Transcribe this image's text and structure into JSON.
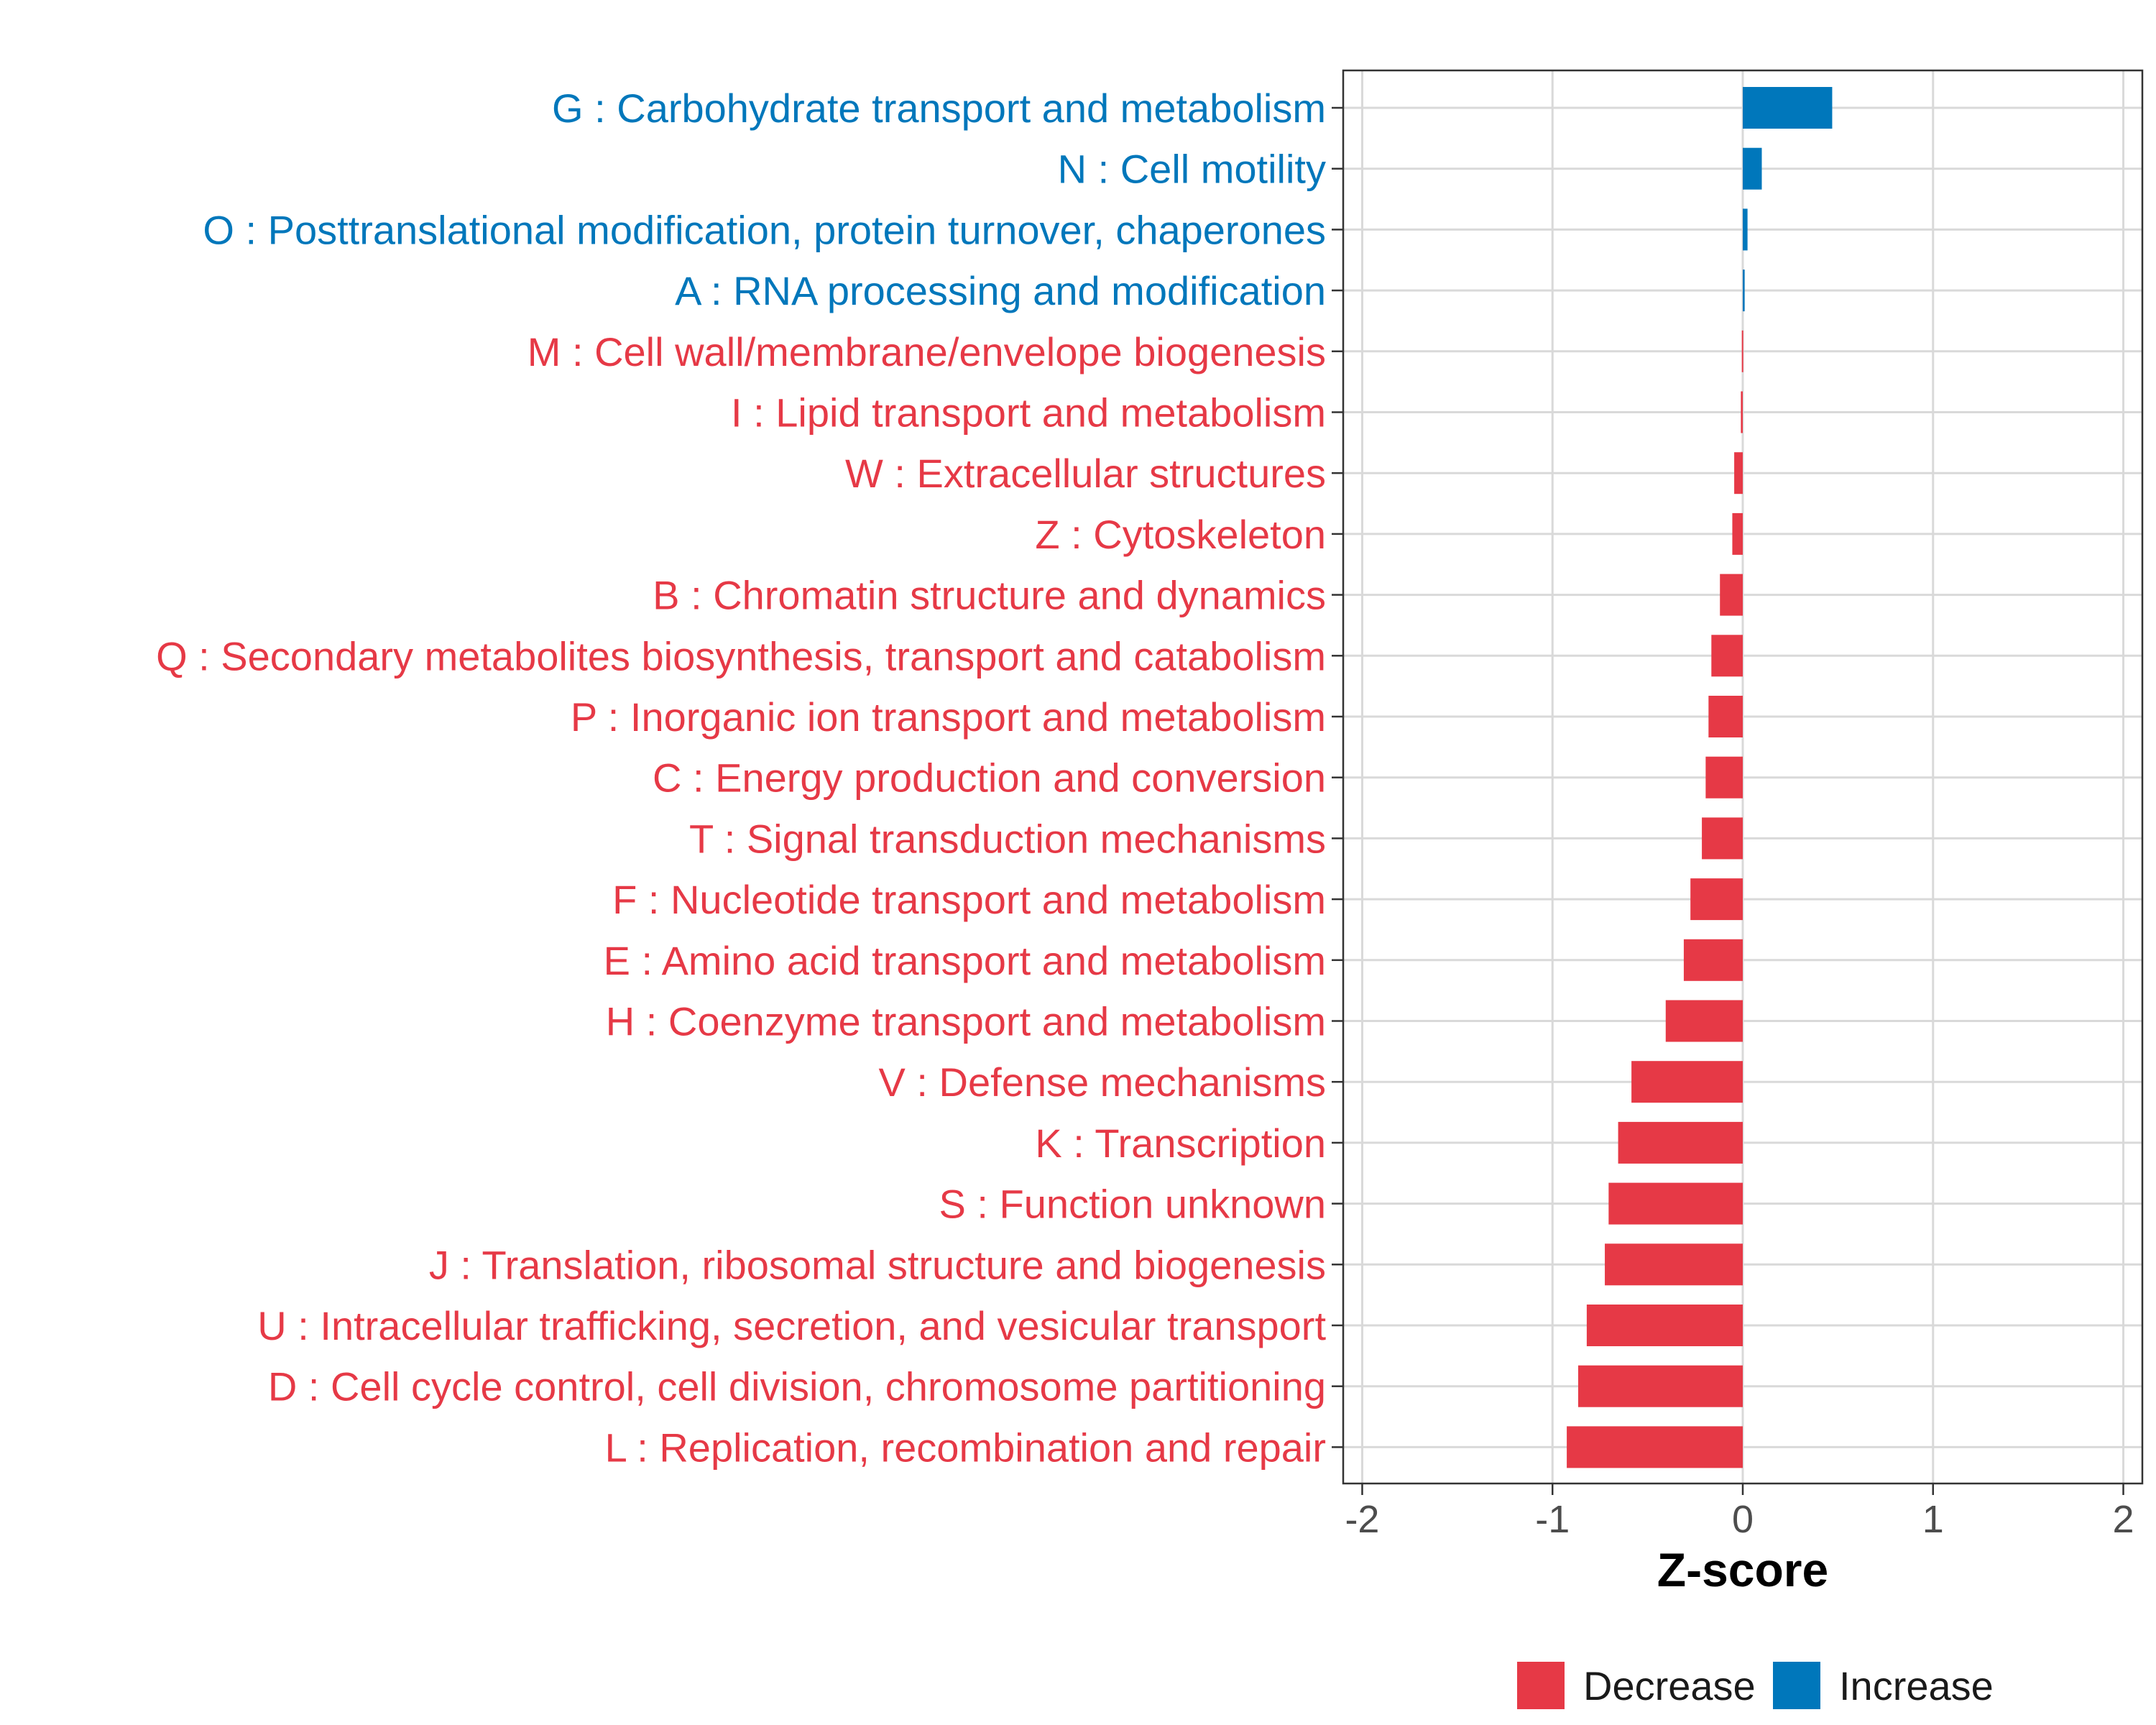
{
  "chart_data": {
    "type": "bar",
    "orientation": "horizontal",
    "title": "",
    "xlabel": "Z-score",
    "ylabel": "",
    "xlim": [
      -2.1,
      2.1
    ],
    "xticks": [
      -2,
      -1,
      0,
      1,
      2
    ],
    "xtick_labels": [
      "-2",
      "-1",
      "0",
      "1",
      "2"
    ],
    "grid": true,
    "legend_position": "bottom",
    "categories": [
      "G : Carbohydrate transport and metabolism",
      "N : Cell motility",
      "O : Posttranslational modification, protein turnover, chaperones",
      "A : RNA processing and modification",
      "M : Cell wall/membrane/envelope biogenesis",
      "I : Lipid transport and metabolism",
      "W : Extracellular structures",
      "Z : Cytoskeleton",
      "B : Chromatin structure and dynamics",
      "Q : Secondary metabolites biosynthesis, transport and catabolism",
      "P : Inorganic ion transport and metabolism",
      "C : Energy production and conversion",
      "T : Signal transduction mechanisms",
      "F : Nucleotide transport and metabolism",
      "E : Amino acid transport and metabolism",
      "H : Coenzyme transport and metabolism",
      "V : Defense mechanisms",
      "K : Transcription",
      "S : Function unknown",
      "J : Translation, ribosomal structure and biogenesis",
      "U : Intracellular trafficking, secretion, and vesicular transport",
      "D : Cell cycle control, cell division, chromosome partitioning",
      "L : Replication, recombination and repair"
    ],
    "values": [
      0.47,
      0.1,
      0.025,
      0.01,
      -0.005,
      -0.01,
      -0.045,
      -0.055,
      -0.12,
      -0.165,
      -0.18,
      -0.195,
      -0.215,
      -0.275,
      -0.31,
      -0.405,
      -0.585,
      -0.655,
      -0.705,
      -0.725,
      -0.82,
      -0.865,
      -0.925
    ],
    "groups": [
      "Increase",
      "Increase",
      "Increase",
      "Increase",
      "Decrease",
      "Decrease",
      "Decrease",
      "Decrease",
      "Decrease",
      "Decrease",
      "Decrease",
      "Decrease",
      "Decrease",
      "Decrease",
      "Decrease",
      "Decrease",
      "Decrease",
      "Decrease",
      "Decrease",
      "Decrease",
      "Decrease",
      "Decrease",
      "Decrease"
    ],
    "legend": [
      {
        "name": "Decrease",
        "color": "#E63946"
      },
      {
        "name": "Increase",
        "color": "#0077BB"
      }
    ]
  },
  "colors": {
    "decrease": "#E63946",
    "increase": "#0077BB",
    "grid": "#d9d9d9",
    "panel_border": "#333333"
  }
}
